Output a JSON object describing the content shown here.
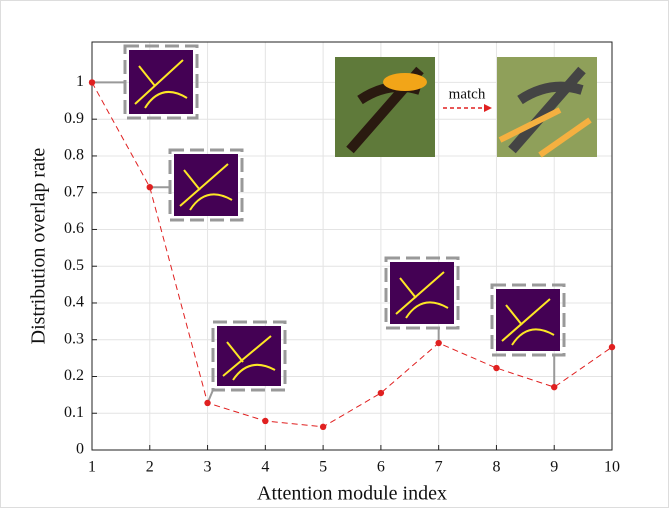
{
  "chart_data": {
    "type": "line",
    "x_label": "Attention module index",
    "y_label": "Distribution overlap rate",
    "annotation": "match",
    "x": [
      1,
      2,
      3,
      4,
      5,
      6,
      7,
      8,
      9,
      10
    ],
    "series": [
      {
        "color": "#e02020",
        "values": [
          1.0,
          0.715,
          0.128,
          0.079,
          0.063,
          0.155,
          0.291,
          0.223,
          0.171,
          0.28
        ]
      }
    ],
    "xlim": [
      1,
      10
    ],
    "xticks": [
      1,
      2,
      3,
      4,
      5,
      6,
      7,
      8,
      9,
      10
    ],
    "ylim": [
      0,
      1.11
    ],
    "yticks": [
      0,
      0.1,
      0.2,
      0.3,
      0.4,
      0.5,
      0.6,
      0.7,
      0.8,
      0.9,
      1
    ],
    "grid": true
  }
}
